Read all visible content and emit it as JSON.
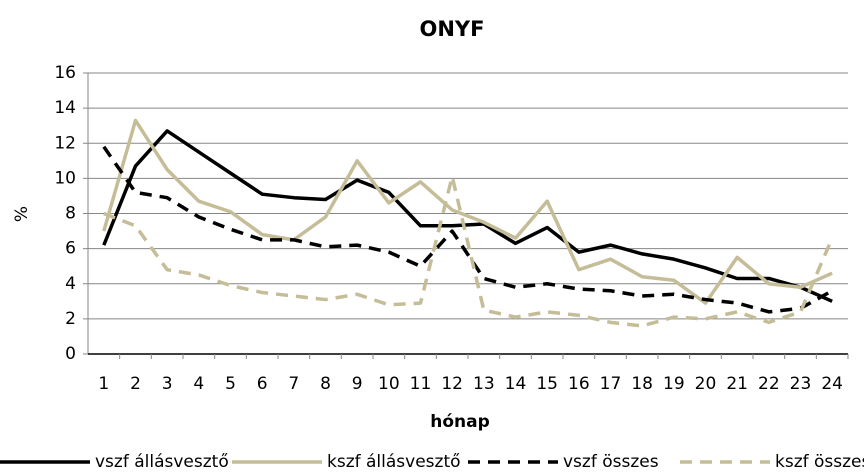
{
  "chart_data": {
    "type": "line",
    "title": "ONYF",
    "xlabel": "hónap",
    "ylabel": "%",
    "categories": [
      "1",
      "2",
      "3",
      "4",
      "5",
      "6",
      "7",
      "8",
      "9",
      "10",
      "11",
      "12",
      "13",
      "14",
      "15",
      "16",
      "17",
      "18",
      "19",
      "20",
      "21",
      "22",
      "23",
      "24"
    ],
    "ylim": [
      0,
      16
    ],
    "yticks": [
      0,
      2,
      4,
      6,
      8,
      10,
      12,
      14,
      16
    ],
    "grid": true,
    "legend": "bottom",
    "series": [
      {
        "name": "vszf állásvesztő",
        "color": "#000000",
        "style": "solid",
        "values": [
          6.2,
          10.7,
          12.7,
          11.5,
          10.3,
          9.1,
          8.9,
          8.8,
          9.9,
          9.2,
          7.3,
          7.3,
          7.4,
          6.3,
          7.2,
          5.8,
          6.2,
          5.7,
          5.4,
          4.9,
          4.3,
          4.3,
          3.8,
          3.0
        ]
      },
      {
        "name": "kszf állásvesztő",
        "color": "#c4bd97",
        "style": "solid",
        "values": [
          7.0,
          13.3,
          10.5,
          8.7,
          8.1,
          6.8,
          6.5,
          7.8,
          11.0,
          8.6,
          9.8,
          8.2,
          7.5,
          6.6,
          8.7,
          4.8,
          5.4,
          4.4,
          4.2,
          2.9,
          5.5,
          4.0,
          3.8,
          4.6
        ]
      },
      {
        "name": "vszf összes",
        "color": "#000000",
        "style": "dashed",
        "values": [
          11.8,
          9.2,
          8.9,
          7.8,
          7.1,
          6.5,
          6.5,
          6.1,
          6.2,
          5.8,
          5.0,
          7.0,
          4.3,
          3.8,
          4.0,
          3.7,
          3.6,
          3.3,
          3.4,
          3.1,
          2.9,
          2.4,
          2.6,
          3.6
        ]
      },
      {
        "name": "kszf összes",
        "color": "#c4bd97",
        "style": "dashed",
        "values": [
          8.0,
          7.3,
          4.8,
          4.5,
          3.9,
          3.5,
          3.3,
          3.1,
          3.4,
          2.8,
          2.9,
          10.1,
          2.5,
          2.1,
          2.4,
          2.2,
          1.8,
          1.6,
          2.1,
          2.0,
          2.4,
          1.8,
          2.4,
          6.6
        ]
      }
    ]
  }
}
